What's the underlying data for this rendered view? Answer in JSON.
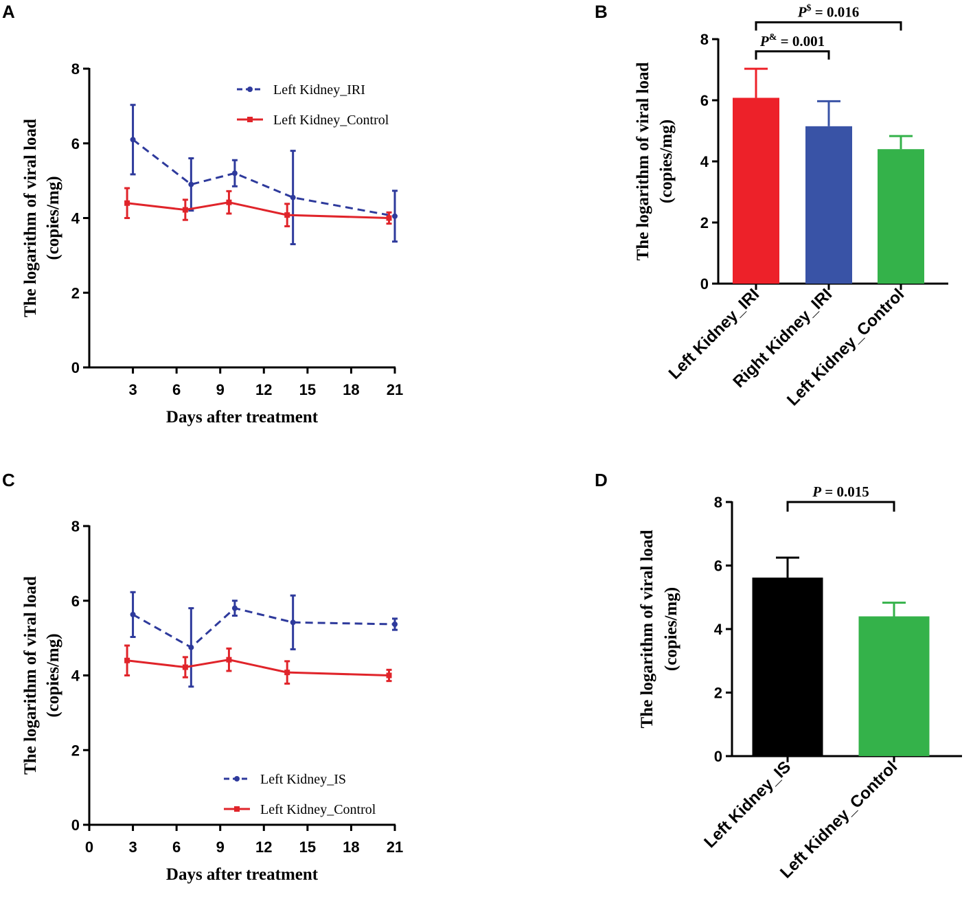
{
  "chart_data": [
    {
      "panel": "A",
      "type": "line",
      "ylabel_line1": "The logarithm of viral load",
      "ylabel_line2": "(copies/mg)",
      "xlabel": "Days after treatment",
      "ylim": [
        0,
        8
      ],
      "yticks": [
        0,
        2,
        4,
        6,
        8
      ],
      "xlim": [
        0,
        21
      ],
      "xticks": [
        3,
        6,
        9,
        12,
        15,
        18,
        21
      ],
      "series": [
        {
          "name": "Left Kidney_IRI",
          "color": "#2e3a9c",
          "style": "dashed",
          "x": [
            3,
            7,
            10,
            14,
            21
          ],
          "y": [
            6.1,
            4.9,
            5.2,
            4.55,
            4.05
          ],
          "err": [
            0.93,
            0.7,
            0.35,
            1.25,
            0.68
          ]
        },
        {
          "name": "Left Kidney_Control",
          "color": "#e0242a",
          "style": "solid",
          "x": [
            2.6,
            6.6,
            9.6,
            13.6,
            20.6
          ],
          "y": [
            4.4,
            4.22,
            4.42,
            4.08,
            4.0
          ],
          "err": [
            0.4,
            0.27,
            0.3,
            0.3,
            0.15
          ]
        }
      ]
    },
    {
      "panel": "B",
      "type": "bar",
      "ylabel_line1": "The logarithm of viral load",
      "ylabel_line2": "(copies/mg)",
      "ylim": [
        0,
        8
      ],
      "yticks": [
        0,
        2,
        4,
        6,
        8
      ],
      "categories": [
        "Left Kidney_IRI",
        "Right Kidney_IRI",
        "Left Kidney_Control"
      ],
      "values": [
        6.08,
        5.15,
        4.4
      ],
      "errors": [
        0.95,
        0.82,
        0.43
      ],
      "colors": [
        "#ed2129",
        "#3953a6",
        "#34b24a"
      ],
      "annotations": [
        {
          "symbol": "P",
          "sup": "&",
          "text": " = 0.001",
          "from": 0,
          "to": 1,
          "y": 7.6
        },
        {
          "symbol": "P",
          "sup": "$",
          "text": " = 0.016",
          "from": 0,
          "to": 2,
          "y": 8.55
        }
      ]
    },
    {
      "panel": "C",
      "type": "line",
      "ylabel_line1": "The logarithm of viral load",
      "ylabel_line2": "(copies/mg)",
      "xlabel": "Days after treatment",
      "ylim": [
        0,
        8
      ],
      "yticks": [
        0,
        2,
        4,
        6,
        8
      ],
      "xlim": [
        0,
        21
      ],
      "xticks": [
        0,
        3,
        6,
        9,
        12,
        15,
        18,
        21
      ],
      "series": [
        {
          "name": "Left Kidney_IS",
          "color": "#2e3a9c",
          "style": "dashed",
          "x": [
            3,
            7,
            10,
            14,
            21
          ],
          "y": [
            5.63,
            4.75,
            5.8,
            5.42,
            5.37
          ],
          "err": [
            0.6,
            1.05,
            0.2,
            0.72,
            0.15
          ]
        },
        {
          "name": "Left Kidney_Control",
          "color": "#e0242a",
          "style": "solid",
          "x": [
            2.6,
            6.6,
            9.6,
            13.6,
            20.6
          ],
          "y": [
            4.4,
            4.22,
            4.42,
            4.08,
            4.0
          ],
          "err": [
            0.4,
            0.27,
            0.3,
            0.3,
            0.15
          ]
        }
      ]
    },
    {
      "panel": "D",
      "type": "bar",
      "ylabel_line1": "The logarithm of viral load",
      "ylabel_line2": "(copies/mg)",
      "ylim": [
        0,
        8
      ],
      "yticks": [
        0,
        2,
        4,
        6,
        8
      ],
      "categories": [
        "Left Kidney_IS",
        "Left Kidney_Control"
      ],
      "values": [
        5.62,
        4.4
      ],
      "errors": [
        0.63,
        0.43
      ],
      "colors": [
        "#000000",
        "#34b24a"
      ],
      "annotations": [
        {
          "symbol": "P",
          "sup": "",
          "text": " = 0.015",
          "from": 0,
          "to": 1,
          "y": 8.0
        }
      ]
    }
  ]
}
